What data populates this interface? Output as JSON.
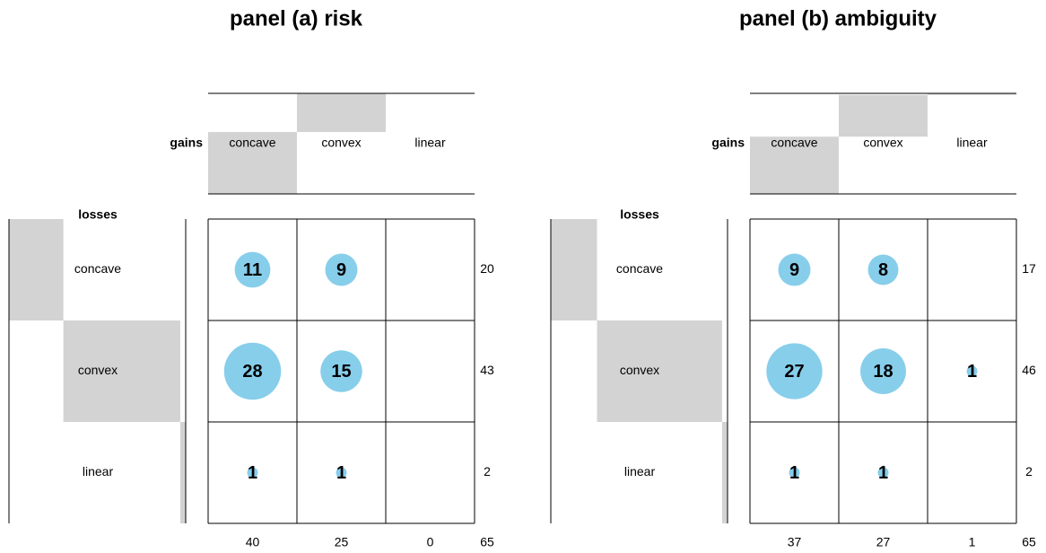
{
  "chart_data": [
    {
      "type": "bubble-matrix",
      "title": "panel (a) risk",
      "x_label": "gains",
      "y_label": "losses",
      "categories": [
        "concave",
        "convex",
        "linear"
      ],
      "rows": [
        "concave",
        "convex",
        "linear"
      ],
      "values": [
        [
          11,
          9,
          null
        ],
        [
          28,
          15,
          null
        ],
        [
          1,
          1,
          null
        ]
      ],
      "row_totals": [
        20,
        43,
        2
      ],
      "column_totals": [
        40,
        25,
        0
      ],
      "total": 65,
      "color": "#87ceeb",
      "margin_color": "#d3d3d3"
    },
    {
      "type": "bubble-matrix",
      "title": "panel (b) ambiguity",
      "x_label": "gains",
      "y_label": "losses",
      "categories": [
        "concave",
        "convex",
        "linear"
      ],
      "rows": [
        "concave",
        "convex",
        "linear"
      ],
      "values": [
        [
          9,
          8,
          null
        ],
        [
          27,
          18,
          1
        ],
        [
          1,
          1,
          null
        ]
      ],
      "row_totals": [
        17,
        46,
        2
      ],
      "column_totals": [
        37,
        27,
        1
      ],
      "total": 65,
      "color": "#87ceeb",
      "margin_color": "#d3d3d3"
    }
  ]
}
